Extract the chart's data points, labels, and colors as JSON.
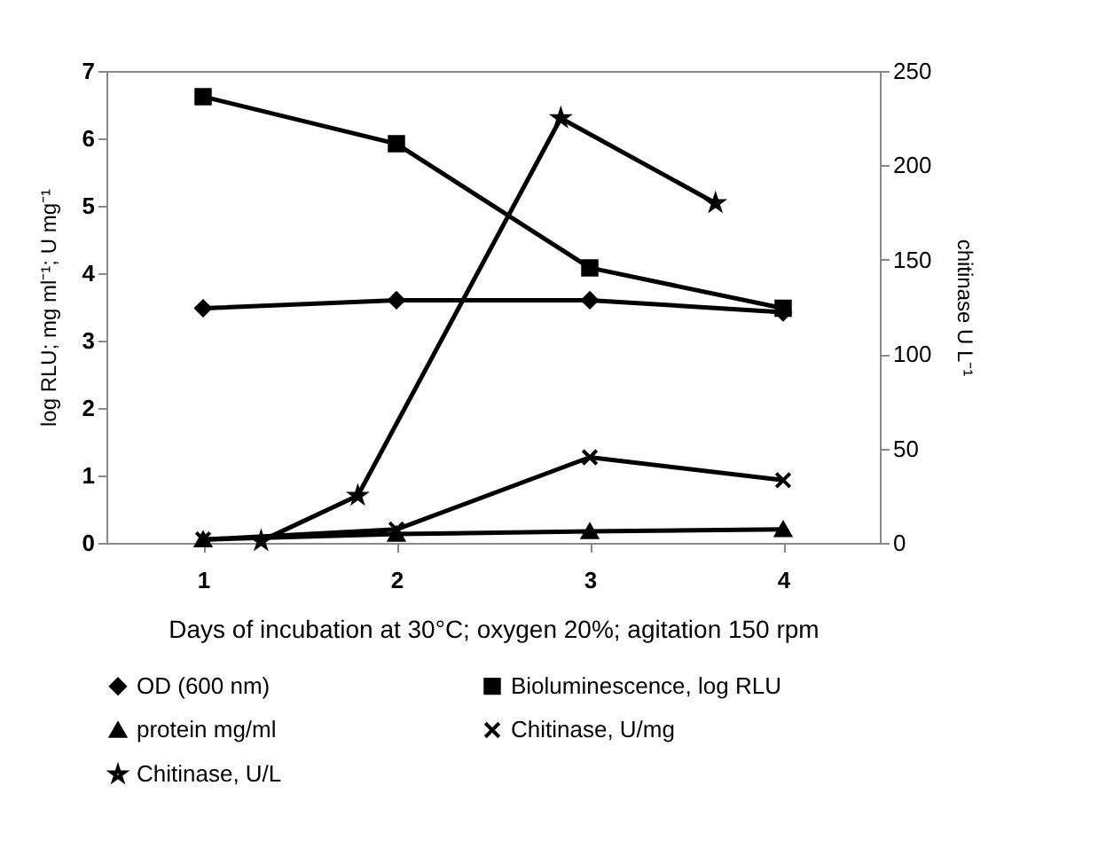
{
  "chart_data": {
    "type": "line",
    "xlabel": "Days of incubation  at 30°C;  oxygen 20%; agitation 150 rpm",
    "ylabel": "log RLU; mg ml⁻¹; U mg⁻¹",
    "y2label": "chitinase U L⁻¹",
    "x": [
      1,
      2,
      3,
      4
    ],
    "xlim": [
      0.5,
      4.5
    ],
    "xticks": [
      1,
      2,
      3,
      4
    ],
    "ylim": [
      0,
      7
    ],
    "yticks": [
      0,
      1,
      2,
      3,
      4,
      5,
      6,
      7
    ],
    "y2lim": [
      0,
      250
    ],
    "y2ticks": [
      0,
      50,
      100,
      150,
      200,
      250
    ],
    "grid": false,
    "legend": "bottom",
    "line_style": "solid",
    "series": [
      {
        "name": "OD (600 nm)",
        "color": "#000000",
        "marker": "diamond",
        "values": [
          3.48,
          3.6,
          3.6,
          3.42
        ]
      },
      {
        "name": "Bioluminescence, log RLU",
        "color": "#000000",
        "marker": "square",
        "values": [
          6.62,
          5.92,
          4.08,
          3.48
        ]
      },
      {
        "name": "protein mg/ml",
        "color": "#000000",
        "marker": "triangle",
        "values": [
          0.05,
          0.13,
          0.17,
          0.2
        ]
      },
      {
        "name": "Chitinase, U/mg",
        "color": "#000000",
        "marker": "cross",
        "values": [
          0.05,
          0.2,
          1.27,
          0.93
        ]
      },
      {
        "name": "Chitinase, U/L",
        "color": "#000000",
        "marker": "star",
        "axis": "y2",
        "x": [
          1.3,
          1.8,
          2.85,
          3.65
        ],
        "values": [
          1,
          25,
          225,
          180
        ]
      }
    ]
  }
}
